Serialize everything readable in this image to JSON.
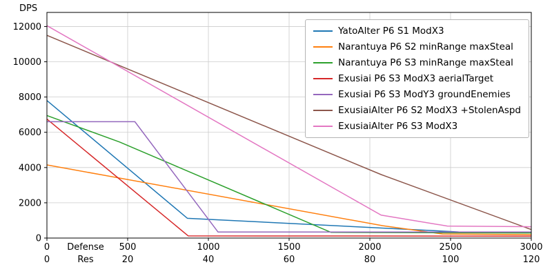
{
  "chart_data": {
    "type": "line",
    "title": "",
    "ylabel": "DPS",
    "xlabel_rows": [
      "Defense",
      "Res"
    ],
    "x_ticks_defense": [
      0,
      500,
      1000,
      1500,
      2000,
      2500,
      3000
    ],
    "x_ticks_res": [
      0,
      20,
      40,
      60,
      80,
      100,
      120
    ],
    "y_ticks": [
      0,
      2000,
      4000,
      6000,
      8000,
      10000,
      12000
    ],
    "xlim": [
      0,
      3000
    ],
    "ylim": [
      0,
      12800
    ],
    "grid": true,
    "grid_color": "#cccccc",
    "legend_position": "upper right",
    "series": [
      {
        "name": "YatoAlter P6 S1 ModX3",
        "color": "#1f77b4",
        "points": [
          [
            0,
            7800
          ],
          [
            870,
            1120
          ],
          [
            2550,
            350
          ],
          [
            3000,
            300
          ]
        ]
      },
      {
        "name": "Narantuya P6 S2 minRange maxSteal",
        "color": "#ff7f0e",
        "points": [
          [
            0,
            4150
          ],
          [
            2080,
            700
          ],
          [
            2450,
            230
          ],
          [
            3000,
            190
          ]
        ]
      },
      {
        "name": "Narantuya P6 S3 minRange maxSteal",
        "color": "#2ca02c",
        "points": [
          [
            0,
            6950
          ],
          [
            450,
            5450
          ],
          [
            1760,
            320
          ],
          [
            3000,
            290
          ]
        ]
      },
      {
        "name": "Exusiai P6 S3 ModX3 aerialTarget",
        "color": "#d62728",
        "points": [
          [
            0,
            6750
          ],
          [
            875,
            120
          ],
          [
            3000,
            110
          ]
        ]
      },
      {
        "name": "Exusiai P6 S3 ModY3 groundEnemies",
        "color": "#9467bd",
        "points": [
          [
            0,
            6600
          ],
          [
            545,
            6600
          ],
          [
            1060,
            340
          ],
          [
            3000,
            340
          ]
        ]
      },
      {
        "name": "ExusiaiAlter P6 S2 ModX3 +StolenAspd",
        "color": "#8c564b",
        "points": [
          [
            0,
            11500
          ],
          [
            2070,
            3600
          ],
          [
            3000,
            480
          ]
        ]
      },
      {
        "name": "ExusiaiAlter P6 S3 ModX3",
        "color": "#e377c2",
        "points": [
          [
            0,
            12050
          ],
          [
            2070,
            1300
          ],
          [
            2480,
            680
          ],
          [
            3000,
            640
          ]
        ]
      }
    ]
  }
}
